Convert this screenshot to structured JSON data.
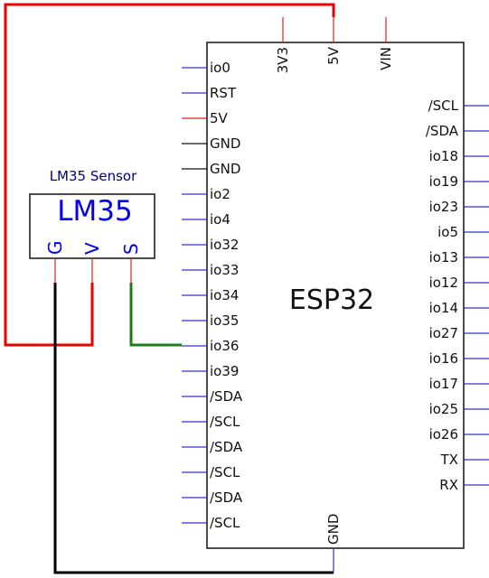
{
  "chip": {
    "title": "ESP32",
    "left_pins": [
      {
        "label": "io0",
        "color": "blue"
      },
      {
        "label": "RST",
        "color": "blue"
      },
      {
        "label": "5V",
        "color": "red"
      },
      {
        "label": "GND",
        "color": "black"
      },
      {
        "label": "GND",
        "color": "black"
      },
      {
        "label": "io2",
        "color": "blue"
      },
      {
        "label": "io4",
        "color": "blue"
      },
      {
        "label": "io32",
        "color": "blue"
      },
      {
        "label": "io33",
        "color": "blue"
      },
      {
        "label": "io34",
        "color": "blue"
      },
      {
        "label": "io35",
        "color": "blue"
      },
      {
        "label": "io36",
        "color": "blue"
      },
      {
        "label": "io39",
        "color": "blue"
      },
      {
        "label": "/SDA",
        "color": "blue"
      },
      {
        "label": "/SCL",
        "color": "blue"
      },
      {
        "label": "/SDA",
        "color": "blue"
      },
      {
        "label": "/SCL",
        "color": "blue"
      },
      {
        "label": "/SDA",
        "color": "blue"
      },
      {
        "label": "/SCL",
        "color": "blue"
      }
    ],
    "right_pins": [
      {
        "label": "/SCL",
        "color": "blue"
      },
      {
        "label": "/SDA",
        "color": "blue"
      },
      {
        "label": "io18",
        "color": "blue"
      },
      {
        "label": "io19",
        "color": "blue"
      },
      {
        "label": "io23",
        "color": "blue"
      },
      {
        "label": "io5",
        "color": "blue"
      },
      {
        "label": "io13",
        "color": "blue"
      },
      {
        "label": "io12",
        "color": "blue"
      },
      {
        "label": "io14",
        "color": "blue"
      },
      {
        "label": "io27",
        "color": "blue"
      },
      {
        "label": "io16",
        "color": "blue"
      },
      {
        "label": "io17",
        "color": "blue"
      },
      {
        "label": "io25",
        "color": "blue"
      },
      {
        "label": "io26",
        "color": "blue"
      },
      {
        "label": "TX",
        "color": "blue"
      },
      {
        "label": "RX",
        "color": "blue"
      }
    ],
    "top_pins": [
      {
        "label": "3V3",
        "color": "red"
      },
      {
        "label": "5V",
        "color": "red"
      },
      {
        "label": "VIN",
        "color": "red"
      }
    ],
    "bottom_pins": [
      {
        "label": "GND",
        "color": "blue"
      }
    ]
  },
  "sensor": {
    "caption": "LM35 Sensor",
    "name": "LM35",
    "pins": [
      {
        "label": "G",
        "color": "red"
      },
      {
        "label": "V",
        "color": "red"
      },
      {
        "label": "S",
        "color": "red"
      }
    ]
  },
  "wires": [
    {
      "id": "wire-5v",
      "color": "red",
      "from": "sensor.V",
      "to": "chip.5V (top)"
    },
    {
      "id": "wire-gnd",
      "color": "black",
      "from": "sensor.G",
      "to": "chip.GND (bottom)"
    },
    {
      "id": "wire-sig",
      "color": "green",
      "from": "sensor.S",
      "to": "chip.io36"
    }
  ],
  "colors": {
    "pin_blue": "#3333cc",
    "pin_red": "#dd2222",
    "pin_black": "#111111",
    "wire_red": "#ee0000",
    "wire_black": "#000000",
    "wire_green": "#1a7f1a",
    "sensor_text": "#0000ee",
    "sensor_caption": "#000088",
    "outline": "#111111"
  }
}
